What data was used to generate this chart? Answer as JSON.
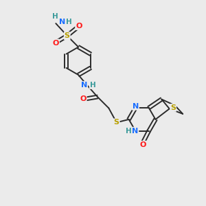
{
  "background_color": "#ebebeb",
  "bond_color": "#2a2a2a",
  "atom_colors": {
    "N": "#1a6eff",
    "O": "#ff1a1a",
    "S": "#b8a000",
    "H": "#3a9a9a",
    "C": "#2a2a2a"
  },
  "figsize": [
    3.0,
    3.0
  ],
  "dpi": 100,
  "bond_lw": 1.4,
  "double_sep": 0.1
}
